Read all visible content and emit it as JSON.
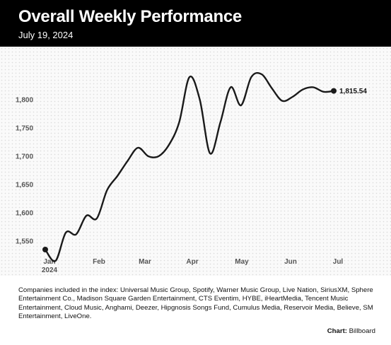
{
  "header": {
    "title": "Overall Weekly Performance",
    "subtitle": "July 19, 2024"
  },
  "chart_data": {
    "type": "line",
    "title": "Overall Weekly Performance",
    "subtitle": "July 19, 2024",
    "xlabel": "",
    "ylabel": "",
    "x_tick_labels": [
      "Jan",
      "Feb",
      "Mar",
      "Apr",
      "May",
      "Jun",
      "Jul"
    ],
    "x_tick_sublabel": "2024",
    "y_ticks": [
      1550,
      1600,
      1650,
      1700,
      1750,
      1800
    ],
    "y_tick_labels": [
      "1,550",
      "1,600",
      "1,650",
      "1,700",
      "1,750",
      "1,800"
    ],
    "ylim": [
      1520,
      1860
    ],
    "grid": false,
    "series": [
      {
        "color": "#1a1a1a",
        "x": [
          "2024-01-05",
          "2024-01-12",
          "2024-01-19",
          "2024-01-26",
          "2024-02-02",
          "2024-02-09",
          "2024-02-16",
          "2024-02-23",
          "2024-03-01",
          "2024-03-08",
          "2024-03-15",
          "2024-03-22",
          "2024-03-29",
          "2024-04-05",
          "2024-04-12",
          "2024-04-19",
          "2024-04-26",
          "2024-05-03",
          "2024-05-10",
          "2024-05-17",
          "2024-05-24",
          "2024-05-31",
          "2024-06-07",
          "2024-06-14",
          "2024-06-21",
          "2024-06-28",
          "2024-07-05",
          "2024-07-12",
          "2024-07-19"
        ],
        "values": [
          1535,
          1515,
          1565,
          1562,
          1595,
          1590,
          1640,
          1665,
          1692,
          1715,
          1700,
          1700,
          1720,
          1760,
          1840,
          1800,
          1705,
          1760,
          1822,
          1790,
          1840,
          1845,
          1820,
          1798,
          1805,
          1818,
          1822,
          1814,
          1815.54
        ],
        "end_label": "1,815.54"
      }
    ]
  },
  "footer": {
    "note": "Companies included in the index: Universal Music Group, Spotify, Warner Music Group, Live Nation, SiriusXM, Sphere Entertainment Co., Madison Square Garden Entertainment, CTS Eventim, HYBE, iHeartMedia, Tencent Music Entertainment, Cloud Music, Anghami, Deezer, Hipgnosis Songs Fund, Cumulus Media, Reservoir Media, Believe, SM Entertainment, LiveOne.",
    "credit_label": "Chart:",
    "credit_source": "Billboard"
  }
}
